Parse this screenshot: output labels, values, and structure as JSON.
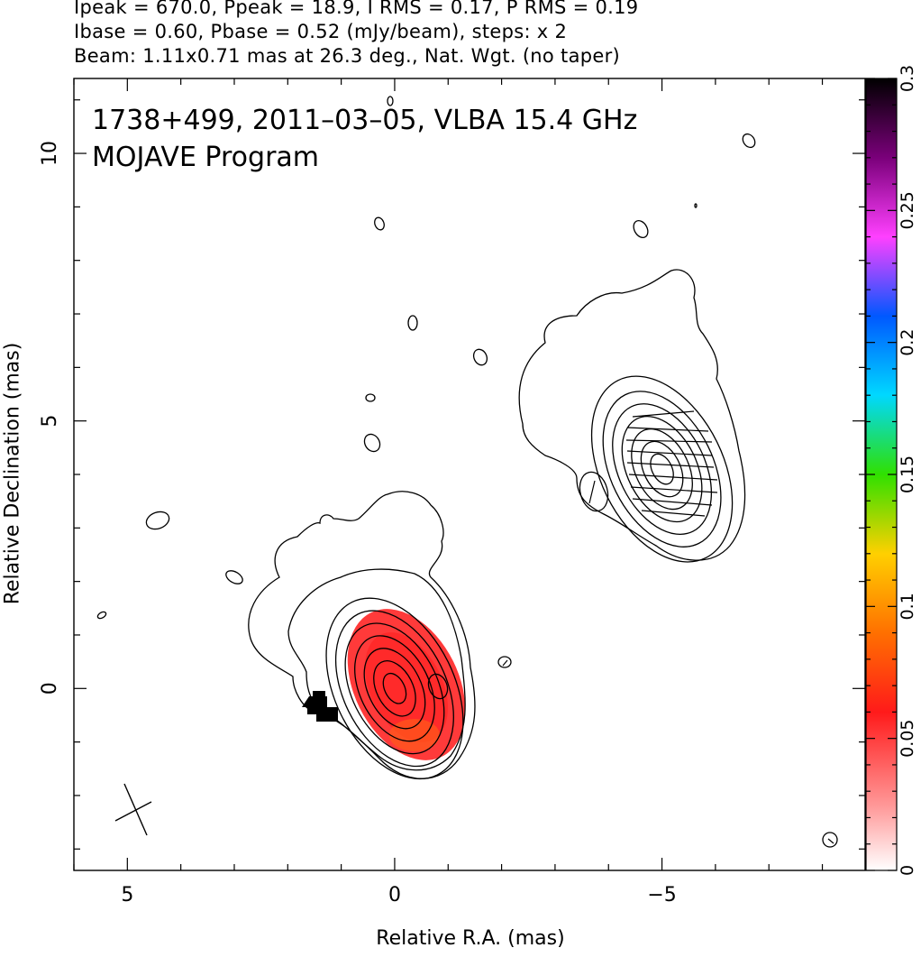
{
  "header": {
    "line1": "Ipeak = 670.0, Ppeak = 18.9, I RMS = 0.17, P RMS = 0.19",
    "line2": "Ibase = 0.60, Pbase = 0.52 (mJy/beam), steps: x 2",
    "line3": "Beam: 1.11x0.71 mas at 26.3 deg., Nat. Wgt. (no taper)"
  },
  "annotations": {
    "source": "1738+499, 2011–03–05, VLBA 15.4 GHz",
    "program": "MOJAVE Program"
  },
  "chart_data": {
    "type": "contour",
    "xlabel": "Relative R.A. (mas)",
    "ylabel": "Relative Declination (mas)",
    "xlim": [
      6.0,
      -8.8
    ],
    "ylim": [
      -3.4,
      11.4
    ],
    "x_ticks": [
      5,
      0,
      -5
    ],
    "x_tick_labels": [
      "5",
      "0",
      "−5"
    ],
    "y_ticks": [
      0,
      5,
      10
    ],
    "y_tick_labels": [
      "0",
      "5",
      "10"
    ],
    "colorbar": {
      "range": [
        0,
        0.3
      ],
      "ticks": [
        0,
        0.05,
        0.1,
        0.15,
        0.2,
        0.25,
        0.3
      ],
      "tick_labels": [
        "0",
        "0.05",
        "0.1",
        "0.15",
        "0.2",
        "0.25",
        "0.3"
      ]
    },
    "core_contours": {
      "center": [
        0,
        0
      ],
      "semi_major_mas": [
        0.3,
        0.55,
        0.8,
        1.05,
        1.3,
        1.55,
        1.8
      ],
      "axis_ratio": 0.62,
      "pa_deg": 26.3
    },
    "knot_contours": {
      "center": [
        -5.0,
        4.1
      ],
      "semi_major_mas": [
        0.3,
        0.55,
        0.8,
        1.05,
        1.3,
        1.55,
        1.85
      ],
      "axis_ratio": 0.62,
      "pa_deg": 26.3
    },
    "beam": {
      "center": [
        4.95,
        -2.3
      ],
      "major_mas": 1.11,
      "minor_mas": 0.71,
      "pa_deg": 26.3
    }
  }
}
